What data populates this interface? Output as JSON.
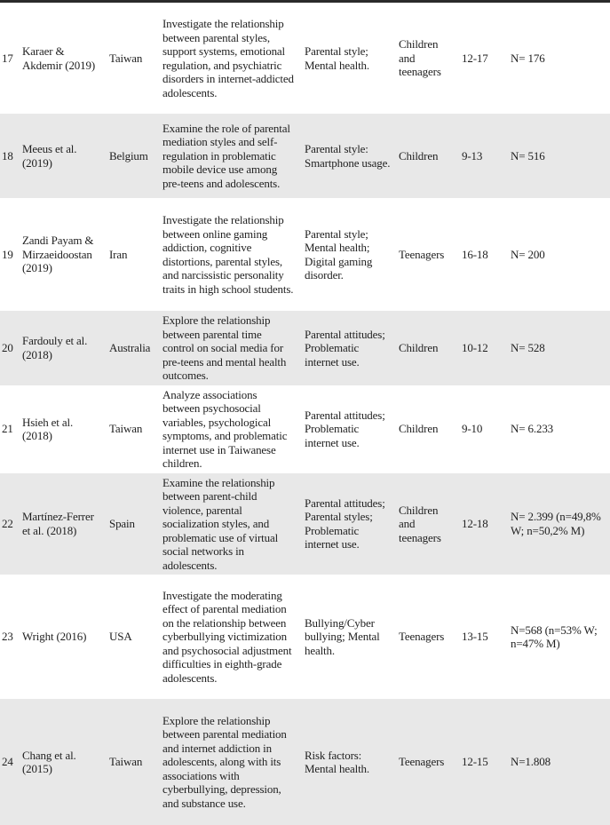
{
  "table": {
    "description": "Systematic review study characteristics table, rows 17-24",
    "columns": [
      "row_number",
      "authors",
      "country",
      "objective",
      "variables",
      "population",
      "age_range",
      "sample_size"
    ],
    "rows": [
      {
        "num": "17",
        "authors": "Karaer & Akdemir (2019)",
        "country": "Taiwan",
        "objective": "Investigate the relationship between parental styles, support systems, emotional regulation, and psychiatric disorders in internet-addicted adolescents.",
        "variables": "Parental style; Mental health.",
        "population": "Children and teenagers",
        "age": "12-17",
        "sample": "N= 176",
        "shaded": false
      },
      {
        "num": "18",
        "authors": "Meeus et al. (2019)",
        "country": "Belgium",
        "objective": "Examine the role of parental mediation styles and self-regulation in problematic mobile device use among pre-teens and adolescents.",
        "variables": "Parental style: Smartphone usage.",
        "population": "Children",
        "age": "9-13",
        "sample": "N= 516",
        "shaded": true
      },
      {
        "num": "19",
        "authors": "Zandi Payam & Mirzaeidoostan (2019)",
        "country": "Iran",
        "objective": "Investigate the relationship between online gaming addiction, cognitive distortions, parental styles, and narcissistic personality traits in high school students.",
        "variables": "Parental style; Mental health; Digital gaming disorder.",
        "population": "Teenagers",
        "age": "16-18",
        "sample": "N= 200",
        "shaded": false
      },
      {
        "num": "20",
        "authors": "Fardouly et al. (2018)",
        "country": "Australia",
        "objective": "Explore the relationship between parental time control on social media for pre-teens and mental health outcomes.",
        "variables": "Parental attitudes; Problematic internet use.",
        "population": "Children",
        "age": "10-12",
        "sample": "N= 528",
        "shaded": true
      },
      {
        "num": "21",
        "authors": "Hsieh et al. (2018)",
        "country": "Taiwan",
        "objective": "Analyze associations between psychosocial variables, psychological symptoms, and problematic internet use in Taiwanese children.",
        "variables": "Parental attitudes; Problematic internet use.",
        "population": "Children",
        "age": "9-10",
        "sample": "N= 6.233",
        "shaded": false
      },
      {
        "num": "22",
        "authors": "Martínez-Ferrer et al. (2018)",
        "country": "Spain",
        "objective": "Examine the relationship between parent-child violence, parental socialization styles, and problematic use of virtual social networks in adolescents.",
        "variables": "Parental attitudes; Parental styles; Problematic internet use.",
        "population": "Children and teenagers",
        "age": "12-18",
        "sample": "N= 2.399 (n=49,8% W; n=50,2%  M)",
        "shaded": true
      },
      {
        "num": "23",
        "authors": "Wright (2016)",
        "country": "USA",
        "objective": "Investigate the moderating effect of parental mediation on the relationship between cyberbullying victimization and psychosocial adjustment difficulties in eighth-grade adolescents.",
        "variables": "Bullying/Cyber bullying; Mental health.",
        "population": "Teenagers",
        "age": "13-15",
        "sample": "N=568 (n=53% W; n=47% M)",
        "shaded": false
      },
      {
        "num": "24",
        "authors": "Chang et al. (2015)",
        "country": "Taiwan",
        "objective": "Explore the relationship between parental mediation and internet addiction in adolescents, along with its associations with cyberbullying, depression, and substance use.",
        "variables": "Risk factors: Mental health.",
        "population": "Teenagers",
        "age": "12-15",
        "sample": "N=1.808",
        "shaded": true
      }
    ],
    "colors": {
      "shaded_row_bg": "#e8e8e8",
      "text": "#1f1f1f",
      "top_rule": "#2a2a2a"
    }
  }
}
